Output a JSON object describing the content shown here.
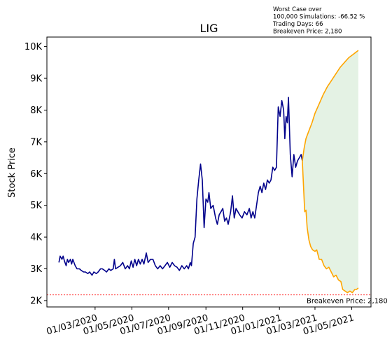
{
  "chart_data": {
    "type": "line",
    "title": "LIG",
    "ylabel": "Stock Price",
    "xlabel": "",
    "ylim": [
      1800,
      10300
    ],
    "xlim": [
      "2019-12-12",
      "2021-06-02"
    ],
    "grid": false,
    "xticks": [
      {
        "date": "2020-03-01",
        "label": "01/03/2020"
      },
      {
        "date": "2020-05-01",
        "label": "01/05/2020"
      },
      {
        "date": "2020-07-01",
        "label": "01/07/2020"
      },
      {
        "date": "2020-09-01",
        "label": "01/09/2020"
      },
      {
        "date": "2020-11-01",
        "label": "01/11/2020"
      },
      {
        "date": "2021-01-01",
        "label": "01/01/2021"
      },
      {
        "date": "2021-03-01",
        "label": "01/03/2021"
      },
      {
        "date": "2021-05-01",
        "label": "01/05/2021"
      }
    ],
    "yticks": [
      {
        "value": 2000,
        "label": "2K"
      },
      {
        "value": 3000,
        "label": "3K"
      },
      {
        "value": 4000,
        "label": "4K"
      },
      {
        "value": 5000,
        "label": "5K"
      },
      {
        "value": 6000,
        "label": "6K"
      },
      {
        "value": 7000,
        "label": "7K"
      },
      {
        "value": 8000,
        "label": "8K"
      },
      {
        "value": 9000,
        "label": "9K"
      },
      {
        "value": 10000,
        "label": "10K"
      }
    ],
    "series": [
      {
        "role": "historical",
        "color": "#00008b",
        "points": [
          [
            "2020-01-01",
            3200
          ],
          [
            "2020-01-03",
            3400
          ],
          [
            "2020-01-06",
            3300
          ],
          [
            "2020-01-08",
            3400
          ],
          [
            "2020-01-10",
            3250
          ],
          [
            "2020-01-13",
            3100
          ],
          [
            "2020-01-15",
            3300
          ],
          [
            "2020-01-17",
            3200
          ],
          [
            "2020-01-20",
            3300
          ],
          [
            "2020-01-22",
            3150
          ],
          [
            "2020-01-24",
            3300
          ],
          [
            "2020-01-28",
            3100
          ],
          [
            "2020-01-31",
            3000
          ],
          [
            "2020-02-04",
            3000
          ],
          [
            "2020-02-07",
            2950
          ],
          [
            "2020-02-11",
            2900
          ],
          [
            "2020-02-14",
            2900
          ],
          [
            "2020-02-18",
            2850
          ],
          [
            "2020-02-21",
            2900
          ],
          [
            "2020-02-25",
            2800
          ],
          [
            "2020-02-28",
            2900
          ],
          [
            "2020-03-03",
            2850
          ],
          [
            "2020-03-06",
            2900
          ],
          [
            "2020-03-10",
            3000
          ],
          [
            "2020-03-13",
            3000
          ],
          [
            "2020-03-17",
            2950
          ],
          [
            "2020-03-20",
            2900
          ],
          [
            "2020-03-24",
            3000
          ],
          [
            "2020-03-27",
            2950
          ],
          [
            "2020-03-31",
            3000
          ],
          [
            "2020-04-02",
            3300
          ],
          [
            "2020-04-04",
            3000
          ],
          [
            "2020-04-08",
            3050
          ],
          [
            "2020-04-12",
            3100
          ],
          [
            "2020-04-16",
            3200
          ],
          [
            "2020-04-20",
            3000
          ],
          [
            "2020-04-24",
            3100
          ],
          [
            "2020-04-27",
            3000
          ],
          [
            "2020-04-30",
            3250
          ],
          [
            "2020-05-03",
            3050
          ],
          [
            "2020-05-06",
            3300
          ],
          [
            "2020-05-09",
            3100
          ],
          [
            "2020-05-12",
            3300
          ],
          [
            "2020-05-15",
            3150
          ],
          [
            "2020-05-18",
            3300
          ],
          [
            "2020-05-21",
            3150
          ],
          [
            "2020-05-25",
            3500
          ],
          [
            "2020-05-28",
            3200
          ],
          [
            "2020-06-01",
            3300
          ],
          [
            "2020-06-05",
            3300
          ],
          [
            "2020-06-09",
            3100
          ],
          [
            "2020-06-13",
            3000
          ],
          [
            "2020-06-17",
            3100
          ],
          [
            "2020-06-21",
            3000
          ],
          [
            "2020-06-25",
            3100
          ],
          [
            "2020-06-29",
            3200
          ],
          [
            "2020-07-03",
            3050
          ],
          [
            "2020-07-07",
            3200
          ],
          [
            "2020-07-11",
            3100
          ],
          [
            "2020-07-15",
            3050
          ],
          [
            "2020-07-19",
            2950
          ],
          [
            "2020-07-23",
            3100
          ],
          [
            "2020-07-27",
            3000
          ],
          [
            "2020-07-31",
            3100
          ],
          [
            "2020-08-03",
            3000
          ],
          [
            "2020-08-06",
            3200
          ],
          [
            "2020-08-08",
            3100
          ],
          [
            "2020-08-11",
            3800
          ],
          [
            "2020-08-14",
            4000
          ],
          [
            "2020-08-17",
            5200
          ],
          [
            "2020-08-20",
            5800
          ],
          [
            "2020-08-23",
            6300
          ],
          [
            "2020-08-26",
            5800
          ],
          [
            "2020-08-29",
            4300
          ],
          [
            "2020-09-01",
            5200
          ],
          [
            "2020-09-04",
            5100
          ],
          [
            "2020-09-06",
            5400
          ],
          [
            "2020-09-09",
            4900
          ],
          [
            "2020-09-13",
            5000
          ],
          [
            "2020-09-17",
            4600
          ],
          [
            "2020-09-20",
            4400
          ],
          [
            "2020-09-23",
            4700
          ],
          [
            "2020-09-26",
            4800
          ],
          [
            "2020-09-29",
            4900
          ],
          [
            "2020-10-02",
            4500
          ],
          [
            "2020-10-05",
            4600
          ],
          [
            "2020-10-08",
            4400
          ],
          [
            "2020-10-12",
            4800
          ],
          [
            "2020-10-15",
            5300
          ],
          [
            "2020-10-18",
            4600
          ],
          [
            "2020-10-21",
            4900
          ],
          [
            "2020-10-24",
            4800
          ],
          [
            "2020-10-27",
            4700
          ],
          [
            "2020-10-31",
            4600
          ],
          [
            "2020-11-04",
            4800
          ],
          [
            "2020-11-08",
            4700
          ],
          [
            "2020-11-12",
            4900
          ],
          [
            "2020-11-15",
            4600
          ],
          [
            "2020-11-18",
            4800
          ],
          [
            "2020-11-21",
            4600
          ],
          [
            "2020-11-24",
            5000
          ],
          [
            "2020-11-27",
            5400
          ],
          [
            "2020-11-30",
            5600
          ],
          [
            "2020-12-03",
            5400
          ],
          [
            "2020-12-06",
            5700
          ],
          [
            "2020-12-09",
            5500
          ],
          [
            "2020-12-12",
            5800
          ],
          [
            "2020-12-15",
            5700
          ],
          [
            "2020-12-18",
            5800
          ],
          [
            "2020-12-21",
            6200
          ],
          [
            "2020-12-24",
            6100
          ],
          [
            "2020-12-27",
            6200
          ],
          [
            "2020-12-30",
            8100
          ],
          [
            "2021-01-02",
            7800
          ],
          [
            "2021-01-05",
            8300
          ],
          [
            "2021-01-08",
            8000
          ],
          [
            "2021-01-10",
            7100
          ],
          [
            "2021-01-12",
            7800
          ],
          [
            "2021-01-14",
            7600
          ],
          [
            "2021-01-16",
            8400
          ],
          [
            "2021-01-19",
            6600
          ],
          [
            "2021-01-22",
            5900
          ],
          [
            "2021-01-25",
            6600
          ],
          [
            "2021-01-28",
            6200
          ],
          [
            "2021-01-31",
            6400
          ],
          [
            "2021-02-03",
            6500
          ],
          [
            "2021-02-06",
            6600
          ],
          [
            "2021-02-08",
            6400
          ]
        ]
      },
      {
        "role": "best-case",
        "color": "#ffa500",
        "points": [
          [
            "2021-02-08",
            6400
          ],
          [
            "2021-02-11",
            6800
          ],
          [
            "2021-02-14",
            7100
          ],
          [
            "2021-02-18",
            7300
          ],
          [
            "2021-02-24",
            7600
          ],
          [
            "2021-03-01",
            7900
          ],
          [
            "2021-03-08",
            8200
          ],
          [
            "2021-03-15",
            8500
          ],
          [
            "2021-03-22",
            8750
          ],
          [
            "2021-03-29",
            8950
          ],
          [
            "2021-04-05",
            9150
          ],
          [
            "2021-04-12",
            9350
          ],
          [
            "2021-04-19",
            9500
          ],
          [
            "2021-04-26",
            9650
          ],
          [
            "2021-05-03",
            9750
          ],
          [
            "2021-05-10",
            9850
          ],
          [
            "2021-05-12",
            9880
          ]
        ]
      },
      {
        "role": "worst-case",
        "color": "#ffa500",
        "points": [
          [
            "2021-02-08",
            6400
          ],
          [
            "2021-02-10",
            5600
          ],
          [
            "2021-02-12",
            4800
          ],
          [
            "2021-02-14",
            4850
          ],
          [
            "2021-02-16",
            4300
          ],
          [
            "2021-02-19",
            3900
          ],
          [
            "2021-02-22",
            3700
          ],
          [
            "2021-02-25",
            3600
          ],
          [
            "2021-03-01",
            3550
          ],
          [
            "2021-03-04",
            3600
          ],
          [
            "2021-03-08",
            3300
          ],
          [
            "2021-03-12",
            3300
          ],
          [
            "2021-03-16",
            3100
          ],
          [
            "2021-03-20",
            3000
          ],
          [
            "2021-03-24",
            3050
          ],
          [
            "2021-03-28",
            2900
          ],
          [
            "2021-04-01",
            2750
          ],
          [
            "2021-04-05",
            2800
          ],
          [
            "2021-04-09",
            2650
          ],
          [
            "2021-04-13",
            2600
          ],
          [
            "2021-04-16",
            2350
          ],
          [
            "2021-04-20",
            2300
          ],
          [
            "2021-04-24",
            2250
          ],
          [
            "2021-04-28",
            2300
          ],
          [
            "2021-05-02",
            2250
          ],
          [
            "2021-05-06",
            2350
          ],
          [
            "2021-05-09",
            2350
          ],
          [
            "2021-05-12",
            2400
          ]
        ]
      }
    ],
    "fill_between": {
      "color": "#c9e6c9",
      "opacity": 0.5
    },
    "breakeven": {
      "value": 2180,
      "color": "#ff0000",
      "label": "Breakeven Price: 2,180"
    },
    "annotation_lines": [
      "Worst Case over",
      "100,000 Simulations: -66.52 %",
      "Trading Days: 66",
      "Breakeven Price: 2,180"
    ]
  }
}
